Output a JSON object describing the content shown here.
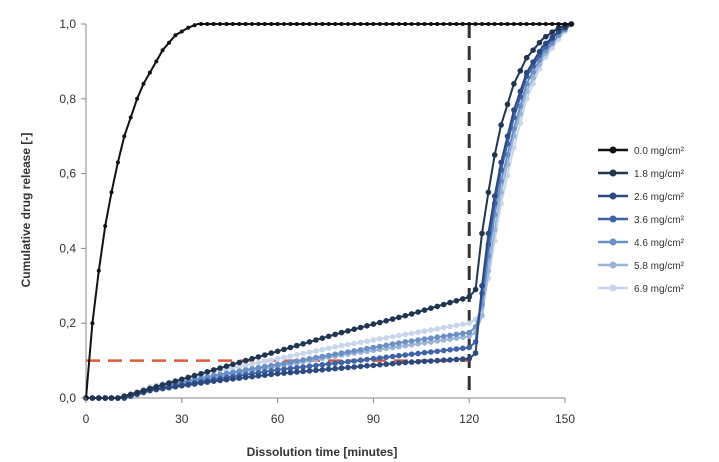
{
  "chart_data": {
    "type": "line",
    "xlabel": "Dissolution time [minutes]",
    "ylabel": "Cumulative drug release [-]",
    "xlim": [
      0,
      150
    ],
    "ylim": [
      0,
      1
    ],
    "x_ticks": [
      "0",
      "30",
      "60",
      "90",
      "120",
      "150"
    ],
    "y_ticks": [
      "0,0",
      "0,2",
      "0,4",
      "0,6",
      "0,8",
      "1,0"
    ],
    "grid": false,
    "legend_position": "right",
    "reference_lines": [
      {
        "orientation": "vertical",
        "x": 120,
        "color": "#333333",
        "style": "dashed"
      },
      {
        "orientation": "horizontal",
        "y": 0.1,
        "x_range": [
          0,
          120
        ],
        "color": "#e05a3a",
        "style": "dashed"
      }
    ],
    "series": [
      {
        "name": "0.0 mg/cm²",
        "color": "#111111",
        "points": [
          [
            0,
            0
          ],
          [
            2,
            0.2
          ],
          [
            4,
            0.34
          ],
          [
            6,
            0.46
          ],
          [
            8,
            0.55
          ],
          [
            10,
            0.63
          ],
          [
            12,
            0.7
          ],
          [
            14,
            0.75
          ],
          [
            16,
            0.8
          ],
          [
            18,
            0.84
          ],
          [
            20,
            0.87
          ],
          [
            22,
            0.9
          ],
          [
            24,
            0.93
          ],
          [
            26,
            0.95
          ],
          [
            28,
            0.97
          ],
          [
            30,
            0.98
          ],
          [
            32,
            0.99
          ],
          [
            35,
            1.0
          ],
          [
            40,
            1.0
          ],
          [
            60,
            1.0
          ],
          [
            80,
            1.0
          ],
          [
            100,
            1.0
          ],
          [
            120,
            1.0
          ],
          [
            140,
            1.0
          ],
          [
            152,
            1.0
          ]
        ]
      },
      {
        "name": "1.8 mg/cm²",
        "color": "#1f3550",
        "points": [
          [
            0,
            0
          ],
          [
            10,
            0.0
          ],
          [
            20,
            0.025
          ],
          [
            40,
            0.075
          ],
          [
            60,
            0.125
          ],
          [
            80,
            0.175
          ],
          [
            100,
            0.22
          ],
          [
            120,
            0.27
          ],
          [
            122,
            0.29
          ],
          [
            124,
            0.44
          ],
          [
            126,
            0.55
          ],
          [
            128,
            0.65
          ],
          [
            130,
            0.73
          ],
          [
            134,
            0.84
          ],
          [
            138,
            0.91
          ],
          [
            143,
            0.96
          ],
          [
            148,
            0.99
          ],
          [
            152,
            1.0
          ]
        ]
      },
      {
        "name": "2.6 mg/cm²",
        "color": "#2c4a80",
        "points": [
          [
            0,
            0
          ],
          [
            12,
            0.0
          ],
          [
            20,
            0.02
          ],
          [
            40,
            0.045
          ],
          [
            60,
            0.065
          ],
          [
            80,
            0.08
          ],
          [
            100,
            0.095
          ],
          [
            120,
            0.105
          ],
          [
            122,
            0.12
          ],
          [
            124,
            0.3
          ],
          [
            126,
            0.44
          ],
          [
            128,
            0.54
          ],
          [
            130,
            0.63
          ],
          [
            134,
            0.77
          ],
          [
            138,
            0.87
          ],
          [
            143,
            0.94
          ],
          [
            148,
            0.98
          ],
          [
            152,
            1.0
          ]
        ]
      },
      {
        "name": "3.6 mg/cm²",
        "color": "#3f63a8",
        "points": [
          [
            0,
            0
          ],
          [
            12,
            0.0
          ],
          [
            20,
            0.02
          ],
          [
            40,
            0.05
          ],
          [
            60,
            0.075
          ],
          [
            80,
            0.095
          ],
          [
            100,
            0.115
          ],
          [
            120,
            0.135
          ],
          [
            122,
            0.15
          ],
          [
            124,
            0.28
          ],
          [
            126,
            0.41
          ],
          [
            128,
            0.52
          ],
          [
            130,
            0.61
          ],
          [
            134,
            0.75
          ],
          [
            138,
            0.86
          ],
          [
            143,
            0.93
          ],
          [
            148,
            0.98
          ],
          [
            152,
            1.0
          ]
        ]
      },
      {
        "name": "4.6 mg/cm²",
        "color": "#6a90c6",
        "points": [
          [
            0,
            0
          ],
          [
            12,
            0.0
          ],
          [
            20,
            0.025
          ],
          [
            40,
            0.06
          ],
          [
            60,
            0.09
          ],
          [
            80,
            0.12
          ],
          [
            100,
            0.15
          ],
          [
            120,
            0.175
          ],
          [
            122,
            0.19
          ],
          [
            124,
            0.25
          ],
          [
            126,
            0.38
          ],
          [
            128,
            0.49
          ],
          [
            130,
            0.58
          ],
          [
            134,
            0.72
          ],
          [
            138,
            0.84
          ],
          [
            143,
            0.92
          ],
          [
            148,
            0.97
          ],
          [
            152,
            1.0
          ]
        ]
      },
      {
        "name": "5.8 mg/cm²",
        "color": "#9ab5d8",
        "points": [
          [
            0,
            0
          ],
          [
            12,
            0.0
          ],
          [
            20,
            0.02
          ],
          [
            40,
            0.055
          ],
          [
            60,
            0.085
          ],
          [
            80,
            0.115
          ],
          [
            100,
            0.14
          ],
          [
            120,
            0.165
          ],
          [
            122,
            0.175
          ],
          [
            124,
            0.22
          ],
          [
            126,
            0.34
          ],
          [
            128,
            0.45
          ],
          [
            130,
            0.55
          ],
          [
            134,
            0.7
          ],
          [
            138,
            0.82
          ],
          [
            143,
            0.91
          ],
          [
            148,
            0.97
          ],
          [
            152,
            1.0
          ]
        ]
      },
      {
        "name": "6.9 mg/cm²",
        "color": "#c7d6ea",
        "points": [
          [
            0,
            0
          ],
          [
            12,
            0.0
          ],
          [
            20,
            0.03
          ],
          [
            40,
            0.07
          ],
          [
            60,
            0.105
          ],
          [
            80,
            0.14
          ],
          [
            100,
            0.17
          ],
          [
            120,
            0.2
          ],
          [
            122,
            0.21
          ],
          [
            124,
            0.24
          ],
          [
            126,
            0.32
          ],
          [
            128,
            0.42
          ],
          [
            130,
            0.52
          ],
          [
            134,
            0.67
          ],
          [
            138,
            0.8
          ],
          [
            143,
            0.9
          ],
          [
            148,
            0.96
          ],
          [
            152,
            1.0
          ]
        ]
      }
    ]
  }
}
